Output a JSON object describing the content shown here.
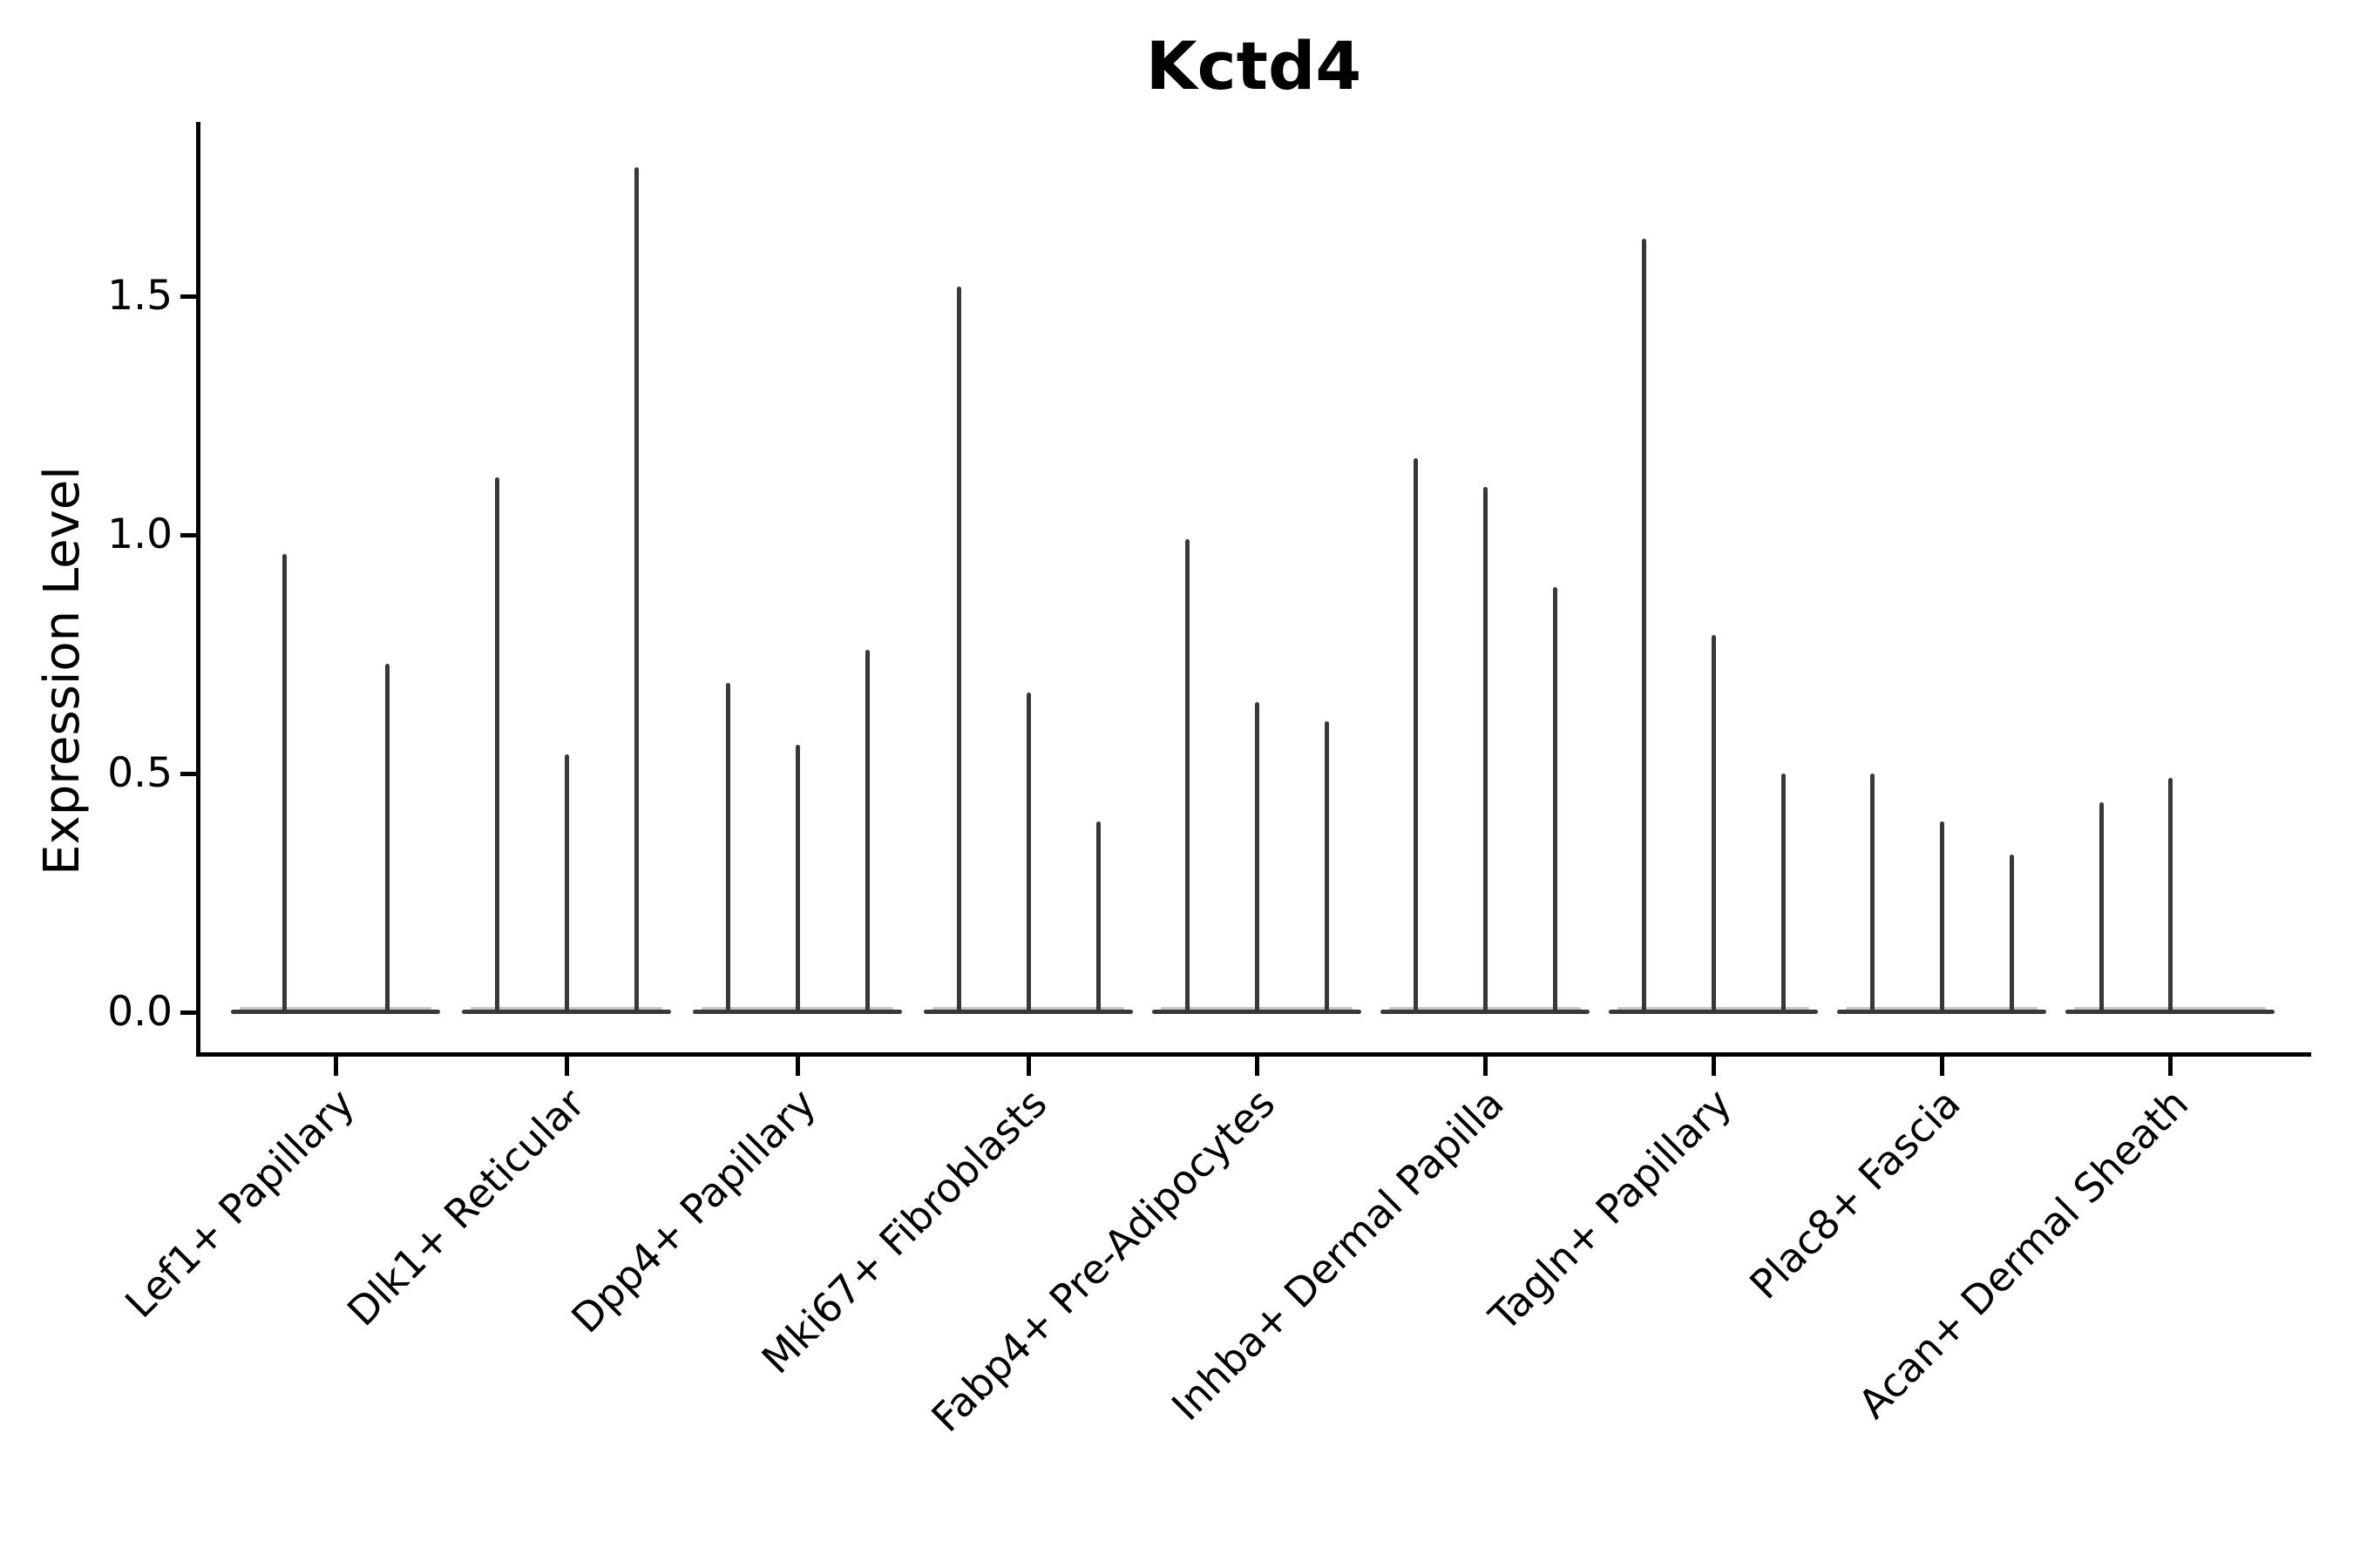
{
  "chart_data": {
    "type": "violin",
    "title": "Kctd4",
    "xlabel": "",
    "ylabel": "Expression Level",
    "yticks": [
      0.0,
      0.5,
      1.0,
      1.5
    ],
    "ytick_labels": [
      "0.0",
      "0.5",
      "1.0",
      "1.5"
    ],
    "ylim": [
      -0.08,
      1.87
    ],
    "grid": false,
    "legend": "none",
    "x_label_rotation": 45,
    "violin_color": "#383838",
    "axis_color": "#000000",
    "categories": [
      "Lef1+ Papillary",
      "Dlk1+ Reticular",
      "Dpp4+ Papillary",
      "Mki67+ Fibroblasts",
      "Fabp4+ Pre-Adipocytes",
      "Inhba+ Dermal Papilla",
      "Tagln+ Papillary",
      "Plac8+ Fascia",
      "Acan+ Dermal Sheath"
    ],
    "violins": [
      {
        "category": "Lef1+ Papillary",
        "spikes": [
          {
            "offset": -59,
            "max": 0.96
          },
          {
            "offset": 59,
            "max": 0.73
          }
        ]
      },
      {
        "category": "Dlk1+ Reticular",
        "spikes": [
          {
            "offset": -80,
            "max": 1.12
          },
          {
            "offset": 0,
            "max": 0.54
          },
          {
            "offset": 80,
            "max": 1.77
          }
        ]
      },
      {
        "category": "Dpp4+ Papillary",
        "spikes": [
          {
            "offset": -80,
            "max": 0.69
          },
          {
            "offset": 0,
            "max": 0.56
          },
          {
            "offset": 80,
            "max": 0.76
          }
        ]
      },
      {
        "category": "Mki67+ Fibroblasts",
        "spikes": [
          {
            "offset": -80,
            "max": 1.52
          },
          {
            "offset": 0,
            "max": 0.67
          },
          {
            "offset": 80,
            "max": 0.4
          }
        ]
      },
      {
        "category": "Fabp4+ Pre-Adipocytes",
        "spikes": [
          {
            "offset": -80,
            "max": 0.99
          },
          {
            "offset": 0,
            "max": 0.65
          },
          {
            "offset": 80,
            "max": 0.61
          }
        ]
      },
      {
        "category": "Inhba+ Dermal Papilla",
        "spikes": [
          {
            "offset": -80,
            "max": 1.16
          },
          {
            "offset": 0,
            "max": 1.1
          },
          {
            "offset": 80,
            "max": 0.89
          }
        ]
      },
      {
        "category": "Tagln+ Papillary",
        "spikes": [
          {
            "offset": -80,
            "max": 1.62
          },
          {
            "offset": 0,
            "max": 0.79
          },
          {
            "offset": 80,
            "max": 0.5
          }
        ]
      },
      {
        "category": "Plac8+ Fascia",
        "spikes": [
          {
            "offset": -80,
            "max": 0.5
          },
          {
            "offset": 0,
            "max": 0.4
          },
          {
            "offset": 80,
            "max": 0.33
          }
        ]
      },
      {
        "category": "Acan+ Dermal Sheath",
        "spikes": [
          {
            "offset": -79,
            "max": 0.44
          },
          {
            "offset": 0,
            "max": 0.49
          }
        ]
      }
    ]
  }
}
